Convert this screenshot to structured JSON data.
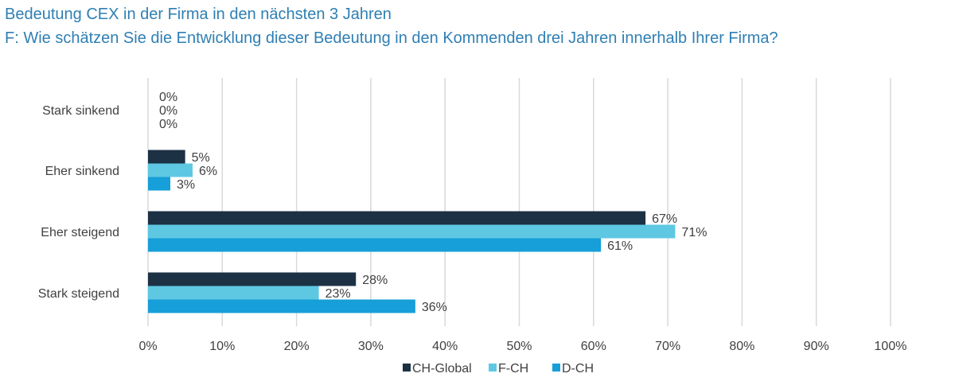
{
  "chart_data": {
    "type": "bar",
    "orientation": "horizontal",
    "title": "Bedeutung CEX in der Firma in den nächsten 3 Jahren",
    "subtitle": "F: Wie schätzen Sie die Entwicklung dieser Bedeutung in den Kommenden drei Jahren innerhalb Ihrer Firma?",
    "categories": [
      "Stark sinkend",
      "Eher sinkend",
      "Eher steigend",
      "Stark steigend"
    ],
    "series": [
      {
        "name": "CH-Global",
        "color": "#1c3144",
        "values": [
          0,
          5,
          67,
          28
        ],
        "labels": [
          "0%",
          "5%",
          "67%",
          "28%"
        ]
      },
      {
        "name": "F-CH",
        "color": "#5ec8e3",
        "values": [
          0,
          6,
          71,
          23
        ],
        "labels": [
          "0%",
          "6%",
          "71%",
          "23%"
        ]
      },
      {
        "name": "D-CH",
        "color": "#169fd8",
        "values": [
          0,
          3,
          61,
          36
        ],
        "labels": [
          "0%",
          "3%",
          "61%",
          "36%"
        ]
      }
    ],
    "xlim": [
      0,
      100
    ],
    "xticks": [
      "0%",
      "10%",
      "20%",
      "30%",
      "40%",
      "50%",
      "60%",
      "70%",
      "80%",
      "90%",
      "100%"
    ],
    "xlabel": "",
    "ylabel": "",
    "grid": true,
    "legend": "bottom"
  }
}
